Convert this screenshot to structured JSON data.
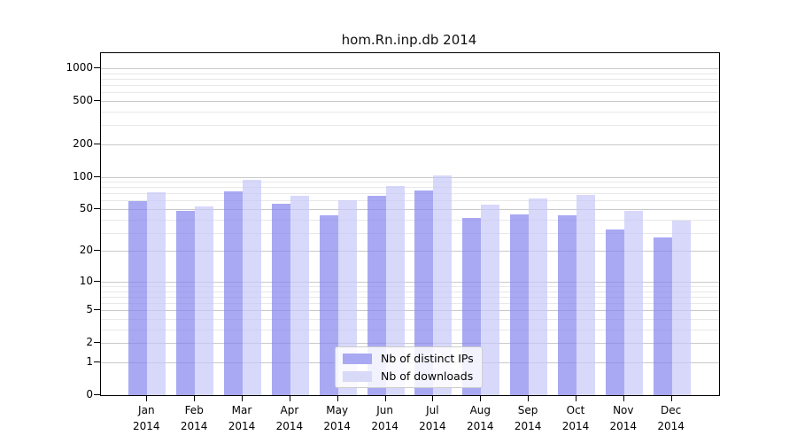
{
  "title": "hom.Rn.inp.db 2014",
  "chart_data": {
    "type": "bar",
    "title": "hom.Rn.inp.db 2014",
    "categories": [
      "Jan",
      "Feb",
      "Mar",
      "Apr",
      "May",
      "Jun",
      "Jul",
      "Aug",
      "Sep",
      "Oct",
      "Nov",
      "Dec"
    ],
    "category_year": "2014",
    "series": [
      {
        "name": "Nb of distinct IPs",
        "color": "#a9a9f3",
        "bar_rgba": "rgba(132,132,238,0.7)",
        "values": [
          59,
          48,
          73,
          56,
          44,
          66,
          75,
          41,
          45,
          44,
          32,
          27
        ]
      },
      {
        "name": "Nb of downloads",
        "color": "#d9d9f8",
        "bar_rgba": "rgba(200,200,250,0.7)",
        "values": [
          72,
          53,
          94,
          66,
          61,
          82,
          103,
          55,
          63,
          68,
          48,
          39
        ]
      }
    ],
    "yticks": [
      1000,
      500,
      200,
      100,
      50,
      20,
      10,
      5,
      2,
      1,
      0
    ],
    "minor_gridlines": [
      900,
      800,
      700,
      600,
      400,
      300,
      90,
      80,
      70,
      60,
      40,
      30,
      9,
      8,
      7,
      6,
      4,
      3
    ],
    "axis": {
      "scale": "log1p",
      "ymin": 0,
      "ymax_value_at_top": 1373,
      "grid": true
    },
    "xlabel": "",
    "ylabel": "",
    "legend_position": "lower center"
  },
  "legend": {
    "items": [
      {
        "label": "Nb of distinct IPs",
        "color": "#a9a9f3"
      },
      {
        "label": "Nb of downloads",
        "color": "#d9d9f8"
      }
    ]
  },
  "colors": {
    "background": "#ffffff",
    "plot_border": "#000000",
    "grid_major": "#c9c9c9",
    "grid_minor": "#e8e8e8",
    "series_dark": "#a9a9f3",
    "series_light": "#d9d9f8"
  }
}
